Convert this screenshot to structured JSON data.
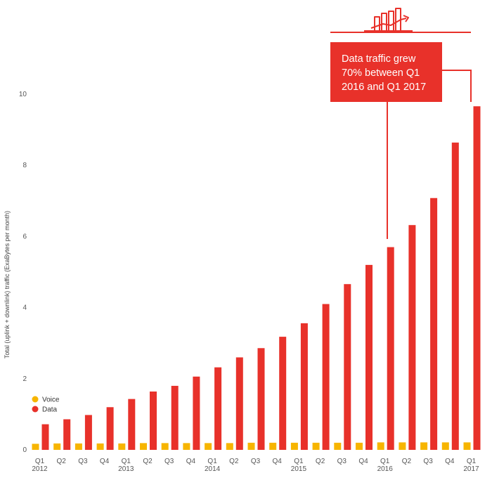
{
  "chart_data": {
    "type": "bar",
    "ylabel": "Total (uplink + downlink) traffic (ExaBytes per month)",
    "xlabel": "",
    "ylim": [
      0,
      10
    ],
    "yticks": [
      0,
      2,
      4,
      6,
      8,
      10
    ],
    "grid": false,
    "legend_placement": "bottom-left",
    "categories": [
      [
        "Q1",
        "2012"
      ],
      [
        "Q2"
      ],
      [
        "Q3"
      ],
      [
        "Q4"
      ],
      [
        "Q1",
        "2013"
      ],
      [
        "Q2"
      ],
      [
        "Q3"
      ],
      [
        "Q4"
      ],
      [
        "Q1",
        "2014"
      ],
      [
        "Q2"
      ],
      [
        "Q3"
      ],
      [
        "Q4"
      ],
      [
        "Q1",
        "2015"
      ],
      [
        "Q2"
      ],
      [
        "Q3"
      ],
      [
        "Q4"
      ],
      [
        "Q1",
        "2016"
      ],
      [
        "Q2"
      ],
      [
        "Q3"
      ],
      [
        "Q4"
      ],
      [
        "Q1",
        "2017"
      ]
    ],
    "series": [
      {
        "name": "Voice",
        "color": "#F7B500",
        "values": [
          0.17,
          0.18,
          0.18,
          0.18,
          0.18,
          0.19,
          0.19,
          0.19,
          0.19,
          0.19,
          0.2,
          0.2,
          0.2,
          0.2,
          0.2,
          0.2,
          0.21,
          0.21,
          0.21,
          0.21,
          0.21
        ]
      },
      {
        "name": "Data",
        "color": "#E8312A",
        "values": [
          0.72,
          0.86,
          0.98,
          1.2,
          1.43,
          1.64,
          1.8,
          2.06,
          2.32,
          2.6,
          2.86,
          3.18,
          3.56,
          4.1,
          4.66,
          5.2,
          5.7,
          6.32,
          7.08,
          8.64,
          9.66
        ]
      }
    ],
    "annotation": {
      "lines": [
        "Data traffic grew",
        "70% between Q1",
        "2016 and Q1 2017"
      ],
      "color": "#E8312A",
      "icon": "growth-chart-icon"
    }
  }
}
